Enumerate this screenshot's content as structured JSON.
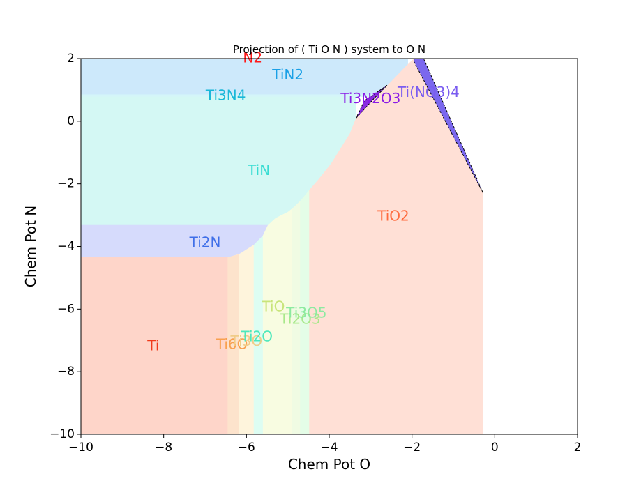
{
  "chart_data": {
    "type": "area",
    "title": "Projection of ( Ti O N ) system to O N",
    "xlabel": "Chem Pot O",
    "ylabel": "Chem Pot N",
    "xlim": [
      -10,
      2
    ],
    "ylim": [
      -10,
      2
    ],
    "x_ticks": [
      -10,
      -8,
      -6,
      -4,
      -2,
      0,
      2
    ],
    "y_ticks": [
      -10,
      -8,
      -6,
      -4,
      -2,
      0,
      2
    ],
    "x_tick_labels": [
      "−10",
      "−8",
      "−6",
      "−4",
      "−2",
      "0",
      "2"
    ],
    "y_tick_labels": [
      "−10",
      "−8",
      "−6",
      "−4",
      "−2",
      "0",
      "2"
    ],
    "grid": false,
    "regions": [
      {
        "name": "TiN2",
        "color": "#cde9fb",
        "label_at": [
          -5.0,
          1.45
        ],
        "polygon": [
          [
            -10,
            2
          ],
          [
            -2.1,
            2
          ],
          [
            -2.1,
            0.85
          ],
          [
            -10,
            0.85
          ]
        ]
      },
      {
        "name": "Ti3N4",
        "color": "#d4f5f9",
        "label_at": [
          -6.5,
          0.8
        ],
        "polygon": [
          [
            -10,
            0.85
          ],
          [
            -2.3,
            0.85
          ],
          [
            -2.3,
            0.78
          ],
          [
            -10,
            0.78
          ]
        ]
      },
      {
        "name": "TiN",
        "color": "#d4f8f4",
        "label_at": [
          -5.7,
          -1.6
        ],
        "polygon": [
          [
            -10,
            0.78
          ],
          [
            -3.35,
            0.78
          ],
          [
            -3.35,
            0.1
          ],
          [
            -3.5,
            -0.4
          ],
          [
            -3.95,
            -1.35
          ],
          [
            -4.25,
            -1.85
          ],
          [
            -4.48,
            -2.2
          ],
          [
            -4.7,
            -2.55
          ],
          [
            -4.9,
            -2.8
          ],
          [
            -5.0,
            -2.9
          ],
          [
            -5.3,
            -3.1
          ],
          [
            -5.48,
            -3.32
          ],
          [
            -10,
            -3.32
          ]
        ]
      },
      {
        "name": "Ti2N",
        "color": "#d6dbfc",
        "label_at": [
          -7.0,
          -3.9
        ],
        "polygon": [
          [
            -10,
            -3.32
          ],
          [
            -5.48,
            -3.32
          ],
          [
            -5.6,
            -3.65
          ],
          [
            -5.82,
            -3.95
          ],
          [
            -6.1,
            -4.2
          ],
          [
            -6.45,
            -4.35
          ],
          [
            -10,
            -4.35
          ]
        ]
      },
      {
        "name": "Ti",
        "color": "#fed5c9",
        "label_at": [
          -8.25,
          -7.2
        ],
        "polygon": [
          [
            -10,
            -4.35
          ],
          [
            -6.45,
            -4.35
          ],
          [
            -6.45,
            -10
          ],
          [
            -10,
            -10
          ]
        ]
      },
      {
        "name": "Ti6O",
        "color": "#fde3cc",
        "label_at": [
          -6.35,
          -7.15
        ],
        "polygon": [
          [
            -6.45,
            -4.35
          ],
          [
            -6.18,
            -4.25
          ],
          [
            -6.18,
            -10
          ],
          [
            -6.45,
            -10
          ]
        ]
      },
      {
        "name": "Ti3O",
        "color": "#fef4dc",
        "label_at": [
          -6.0,
          -7.05
        ],
        "polygon": [
          [
            -6.18,
            -4.25
          ],
          [
            -5.82,
            -3.95
          ],
          [
            -5.82,
            -10
          ],
          [
            -6.18,
            -10
          ]
        ]
      },
      {
        "name": "Ti2O",
        "color": "#ddfdf2",
        "label_at": [
          -5.75,
          -6.9
        ],
        "polygon": [
          [
            -5.82,
            -3.95
          ],
          [
            -5.6,
            -3.65
          ],
          [
            -5.6,
            -10
          ],
          [
            -5.82,
            -10
          ]
        ]
      },
      {
        "name": "TiO",
        "color": "#f8fce1",
        "label_at": [
          -5.35,
          -5.95
        ],
        "polygon": [
          [
            -5.6,
            -3.65
          ],
          [
            -5.48,
            -3.32
          ],
          [
            -5.3,
            -3.1
          ],
          [
            -5.0,
            -2.9
          ],
          [
            -4.9,
            -2.8
          ],
          [
            -4.9,
            -10
          ],
          [
            -5.6,
            -10
          ]
        ]
      },
      {
        "name": "Ti2O3",
        "color": "#f0fbe3",
        "label_at": [
          -4.7,
          -6.35
        ],
        "polygon": [
          [
            -4.9,
            -2.8
          ],
          [
            -4.7,
            -2.55
          ],
          [
            -4.7,
            -10
          ],
          [
            -4.9,
            -10
          ]
        ]
      },
      {
        "name": "Ti3O5",
        "color": "#e4fde7",
        "label_at": [
          -4.55,
          -6.15
        ],
        "polygon": [
          [
            -4.7,
            -2.55
          ],
          [
            -4.48,
            -2.2
          ],
          [
            -4.48,
            -10
          ],
          [
            -4.7,
            -10
          ]
        ]
      },
      {
        "name": "TiO2",
        "color": "#ffe0d6",
        "label_at": [
          -2.45,
          -3.05
        ],
        "polygon": [
          [
            -4.48,
            -2.2
          ],
          [
            -4.25,
            -1.85
          ],
          [
            -3.95,
            -1.35
          ],
          [
            -3.5,
            -0.4
          ],
          [
            -3.35,
            0.1
          ],
          [
            -2.15,
            1.75
          ],
          [
            -1.95,
            2.0
          ],
          [
            -1.95,
            1.9
          ],
          [
            -0.28,
            -2.3
          ],
          [
            -0.28,
            -10
          ],
          [
            -4.48,
            -10
          ]
        ]
      },
      {
        "name": "Ti3N2O3",
        "color": "#8a2be2",
        "label_at": [
          -3.0,
          0.7
        ],
        "outlined": true,
        "polygon": [
          [
            -3.35,
            0.1
          ],
          [
            -2.92,
            0.72
          ],
          [
            -2.6,
            1.15
          ],
          [
            -3.15,
            0.65
          ]
        ]
      },
      {
        "name": "Ti(NO3)4",
        "color": "#7b68ee",
        "label_at": [
          -1.6,
          0.9
        ],
        "outlined": true,
        "polygon": [
          [
            -1.95,
            2.0
          ],
          [
            -1.72,
            2.0
          ],
          [
            -0.28,
            -2.3
          ],
          [
            -1.95,
            1.9
          ]
        ]
      },
      {
        "name": "N2",
        "color": "#ff0000",
        "label_at": [
          -5.85,
          2.0
        ],
        "polygon": []
      }
    ],
    "label_colors": {
      "N2": "#ff1a1a",
      "TiN2": "#1aa0e6",
      "Ti3N4": "#19b8d8",
      "TiN": "#36dcd2",
      "Ti2N": "#3f6fe8",
      "Ti": "#f03a1a",
      "Ti6O": "#f8a050",
      "Ti3O": "#f0cc88",
      "Ti2O": "#4ee8bc",
      "TiO": "#c8e47a",
      "Ti2O3": "#a8e88a",
      "Ti3O5": "#8ceaa0",
      "TiO2": "#ff6a3c",
      "Ti3N2O3": "#8a1ae6",
      "Ti(NO3)4": "#7a5cf0"
    }
  }
}
